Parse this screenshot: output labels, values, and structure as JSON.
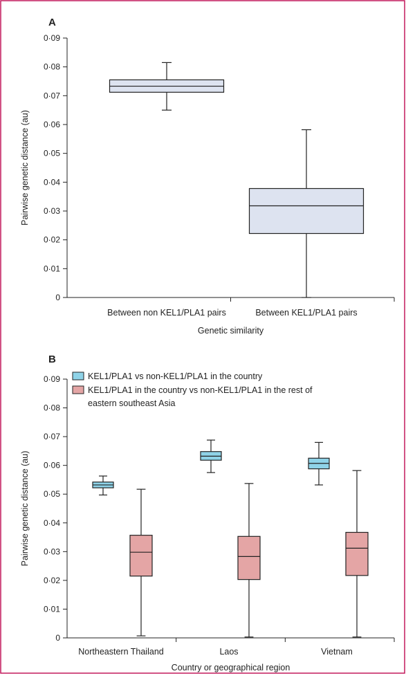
{
  "chart_data": [
    {
      "type": "box",
      "panel": "A",
      "xlabel": "Genetic similarity",
      "ylabel": "Pairwise genetic distance (au)",
      "ylim": [
        0,
        0.09
      ],
      "yticks": [
        "0",
        "0·01",
        "0·02",
        "0·03",
        "0·04",
        "0·05",
        "0·06",
        "0·07",
        "0·08",
        "0·09"
      ],
      "categories": [
        "Between non KEL1/PLA1 pairs",
        "Between KEL1/PLA1 pairs"
      ],
      "series": [
        {
          "color": "#dde3f0",
          "boxes": [
            {
              "min": 0.065,
              "q1": 0.0712,
              "median": 0.0733,
              "q3": 0.0755,
              "max": 0.0815
            },
            {
              "min": 0.0,
              "q1": 0.0222,
              "median": 0.0318,
              "q3": 0.0378,
              "max": 0.0582
            }
          ]
        }
      ]
    },
    {
      "type": "box",
      "panel": "B",
      "xlabel": "Country or geographical region",
      "ylabel": "Pairwise genetic distance (au)",
      "ylim": [
        0,
        0.09
      ],
      "yticks": [
        "0",
        "0·01",
        "0·02",
        "0·03",
        "0·04",
        "0·05",
        "0·06",
        "0·07",
        "0·08",
        "0·09"
      ],
      "categories": [
        "Northeastern Thailand",
        "Laos",
        "Vietnam"
      ],
      "legend": "top-left",
      "series": [
        {
          "name": "KEL1/PLA1 vs non-KEL1/PLA1 in the country",
          "color": "#8fd3e8",
          "boxes": [
            {
              "min": 0.0497,
              "q1": 0.0522,
              "median": 0.0532,
              "q3": 0.0542,
              "max": 0.0563
            },
            {
              "min": 0.0575,
              "q1": 0.0618,
              "median": 0.0632,
              "q3": 0.0648,
              "max": 0.0688
            },
            {
              "min": 0.0532,
              "q1": 0.0588,
              "median": 0.0607,
              "q3": 0.0625,
              "max": 0.068
            }
          ]
        },
        {
          "name": "KEL1/PLA1 in the country vs non-KEL1/PLA1 in the rest of eastern southeast Asia",
          "color": "#e4a5a5",
          "boxes": [
            {
              "min": 0.0007,
              "q1": 0.0215,
              "median": 0.0298,
              "q3": 0.0357,
              "max": 0.0517
            },
            {
              "min": 0.0003,
              "q1": 0.0203,
              "median": 0.0283,
              "q3": 0.0353,
              "max": 0.0537
            },
            {
              "min": 0.0003,
              "q1": 0.0217,
              "median": 0.0312,
              "q3": 0.0367,
              "max": 0.0582
            }
          ]
        }
      ]
    }
  ]
}
